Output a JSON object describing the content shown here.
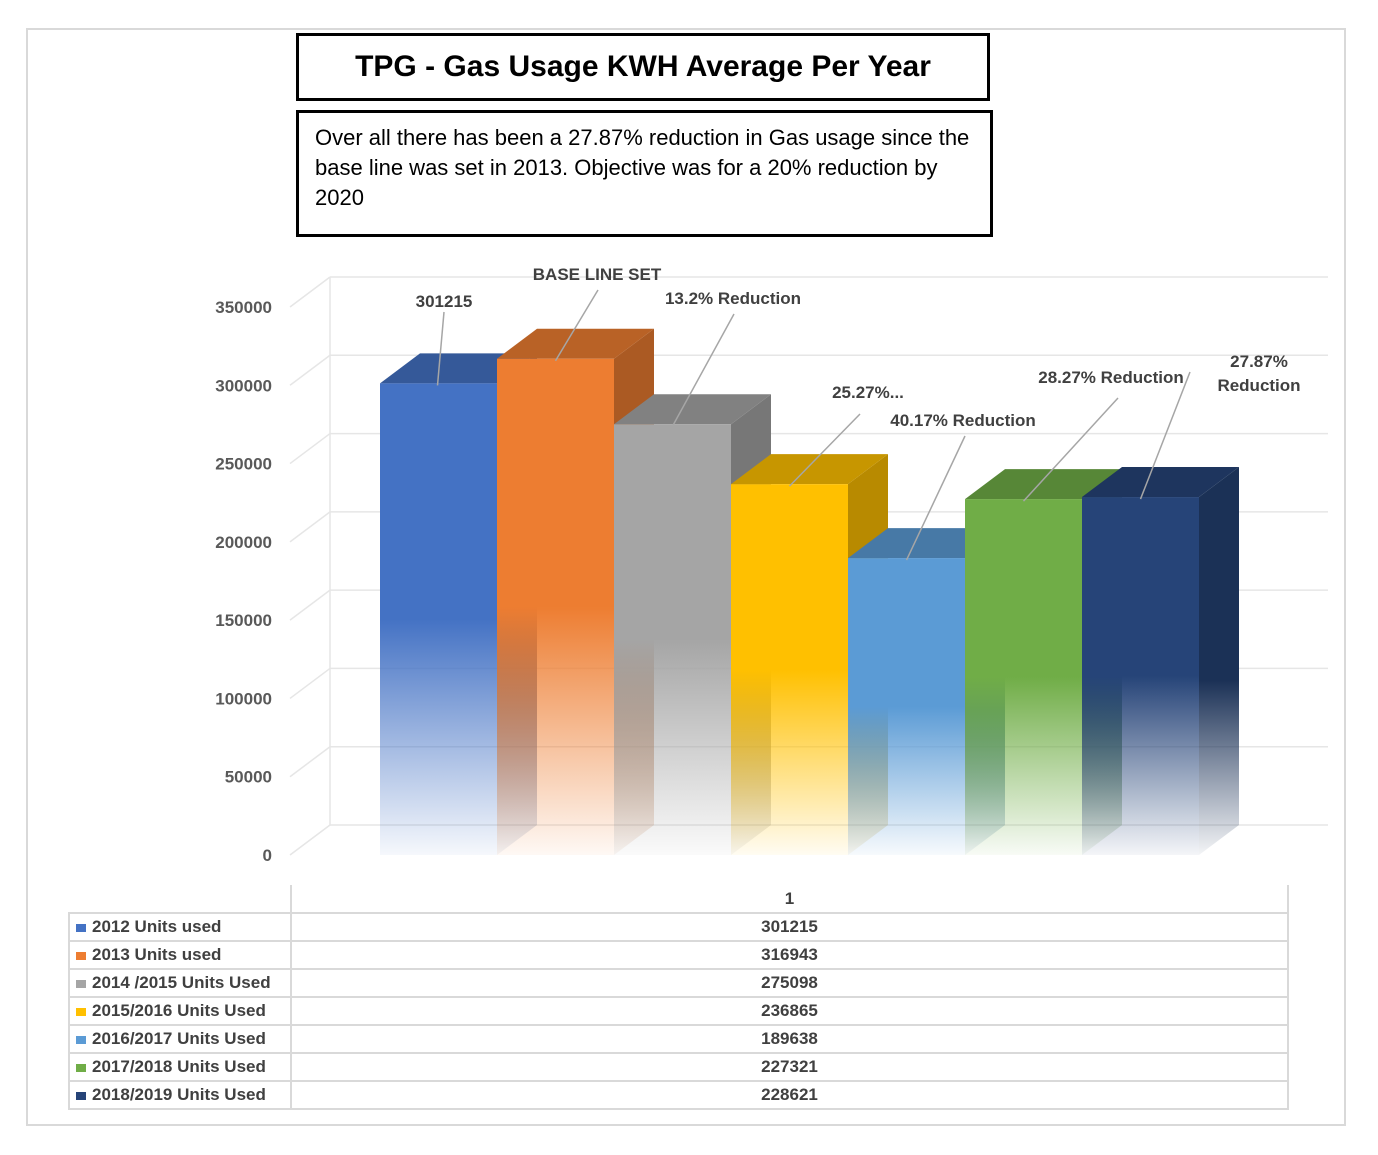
{
  "title": "TPG - Gas Usage KWH Average Per Year",
  "note": "Over all there has been a 27.87% reduction in Gas usage since the base line was set in 2013. Objective was for a 20% reduction by 2020",
  "chart_data": {
    "type": "bar",
    "title": "TPG - Gas Usage KWH Average Per Year",
    "categories": [
      "1"
    ],
    "ylim": [
      0,
      350000
    ],
    "y_ticks": [
      "0",
      "50000",
      "100000",
      "150000",
      "200000",
      "250000",
      "300000",
      "350000"
    ],
    "grid": true,
    "legend": "table below chart",
    "series": [
      {
        "name": "2012  Units used",
        "values": [
          301215
        ],
        "color": "#4472C4",
        "annotation": "301215"
      },
      {
        "name": "2013 Units used",
        "values": [
          316943
        ],
        "color": "#ED7D31",
        "annotation": "BASE LINE SET"
      },
      {
        "name": "2014 /2015 Units Used",
        "values": [
          275098
        ],
        "color": "#A5A5A5",
        "annotation": "13.2% Reduction"
      },
      {
        "name": "2015/2016 Units Used",
        "values": [
          236865
        ],
        "color": "#FFC000",
        "annotation": "25.27%..."
      },
      {
        "name": "2016/2017 Units Used",
        "values": [
          189638
        ],
        "color": "#5B9BD5",
        "annotation": "40.17% Reduction"
      },
      {
        "name": "2017/2018 Units Used",
        "values": [
          227321
        ],
        "color": "#70AD47",
        "annotation": "28.27% Reduction"
      },
      {
        "name": "2018/2019 Units Used",
        "values": [
          228621
        ],
        "color": "#264478",
        "annotation": "27.87% Reduction"
      }
    ],
    "table": {
      "header": "1",
      "rows": [
        {
          "label": "2012  Units used",
          "value": "301215"
        },
        {
          "label": "2013 Units used",
          "value": "316943"
        },
        {
          "label": "2014 /2015 Units Used",
          "value": "275098"
        },
        {
          "label": "2015/2016 Units Used",
          "value": "236865"
        },
        {
          "label": "2016/2017 Units Used",
          "value": "189638"
        },
        {
          "label": "2017/2018 Units Used",
          "value": "227321"
        },
        {
          "label": "2018/2019 Units Used",
          "value": "228621"
        }
      ]
    }
  }
}
